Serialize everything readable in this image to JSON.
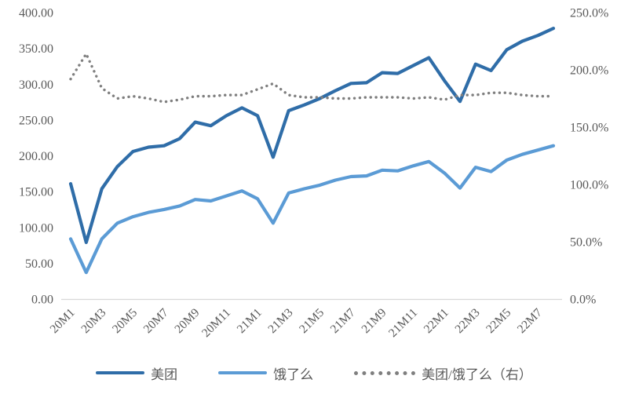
{
  "chart_data": {
    "type": "line",
    "title": "",
    "categories": [
      "20M1",
      "20M2",
      "20M3",
      "20M4",
      "20M5",
      "20M6",
      "20M7",
      "20M8",
      "20M9",
      "20M10",
      "20M11",
      "20M12",
      "21M1",
      "21M2",
      "21M3",
      "21M4",
      "21M5",
      "21M6",
      "21M7",
      "21M8",
      "21M9",
      "21M10",
      "21M11",
      "21M12",
      "22M1",
      "22M2",
      "22M3",
      "22M4",
      "22M5",
      "22M6",
      "22M7",
      "22M8"
    ],
    "x_tick_labels": [
      "20M1",
      "20M3",
      "20M5",
      "20M7",
      "20M9",
      "20M11",
      "21M1",
      "21M3",
      "21M5",
      "21M7",
      "21M9",
      "21M11",
      "22M1",
      "22M3",
      "22M5",
      "22M7"
    ],
    "tick_step": 2,
    "left_axis": {
      "min": 0,
      "max": 400,
      "ticks": [
        "400.00",
        "350.00",
        "300.00",
        "250.00",
        "200.00",
        "150.00",
        "100.00",
        "50.00",
        "0.00"
      ]
    },
    "right_axis": {
      "min": 0,
      "max": 250,
      "ticks": [
        "250.0%",
        "200.0%",
        "150.0%",
        "100.0%",
        "50.0%",
        "0.0%"
      ]
    },
    "series": [
      {
        "name": "美团",
        "axis": "left",
        "style": "solid",
        "color": "#2F6DA8",
        "values": [
          161,
          79,
          154,
          185,
          206,
          212,
          214,
          224,
          247,
          242,
          256,
          267,
          256,
          198,
          263,
          271,
          280,
          291,
          301,
          302,
          316,
          315,
          326,
          337,
          305,
          276,
          328,
          319,
          348,
          360,
          368,
          378
        ]
      },
      {
        "name": "饿了么",
        "axis": "left",
        "style": "solid",
        "color": "#5B9BD5",
        "values": [
          84,
          37,
          84,
          106,
          115,
          121,
          125,
          130,
          139,
          137,
          144,
          151,
          140,
          106,
          148,
          154,
          159,
          166,
          171,
          172,
          180,
          179,
          186,
          192,
          176,
          155,
          184,
          178,
          194,
          202,
          208,
          214
        ]
      },
      {
        "name": "美团/饿了么（右）",
        "axis": "right",
        "style": "dotted",
        "color": "#7F7F7F",
        "values": [
          192,
          214,
          184,
          175,
          177,
          175,
          172,
          174,
          177,
          177,
          178,
          178,
          183,
          188,
          178,
          176,
          176,
          175,
          175,
          176,
          176,
          176,
          175,
          176,
          174,
          178,
          178,
          180,
          180,
          178,
          177,
          177
        ]
      }
    ],
    "legend_position": "bottom",
    "grid": "off",
    "colors": {
      "background": "#FFFFFF",
      "axis_line": "#D9D9D9",
      "text": "#595959"
    }
  }
}
